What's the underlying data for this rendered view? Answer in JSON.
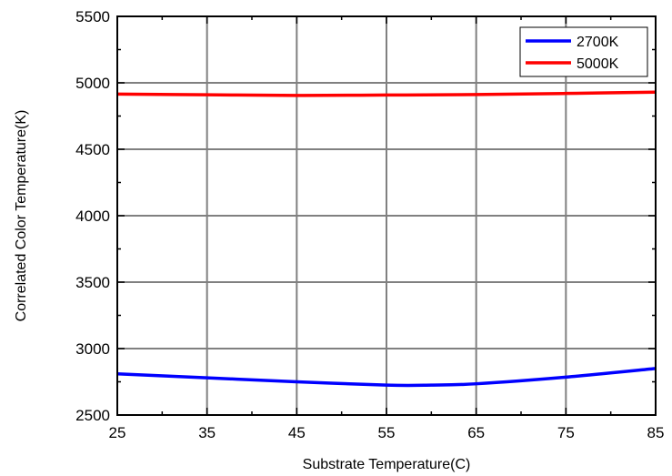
{
  "chart_data": {
    "type": "line",
    "title": "",
    "xlabel": "Substrate Temperature(C)",
    "ylabel": "Correlated Color Temperature(K)",
    "xlim": [
      25,
      85
    ],
    "ylim": [
      2500,
      5500
    ],
    "xticks": [
      25,
      35,
      45,
      55,
      65,
      75,
      85
    ],
    "yticks": [
      2500,
      3000,
      3500,
      4000,
      4500,
      5000,
      5500
    ],
    "grid": true,
    "legend_position": "top-right",
    "series": [
      {
        "name": "2700K",
        "color": "#0000ff",
        "x": [
          25,
          35,
          45,
          55,
          60,
          65,
          75,
          85
        ],
        "y": [
          2810,
          2780,
          2750,
          2725,
          2725,
          2735,
          2785,
          2850
        ]
      },
      {
        "name": "5000K",
        "color": "#ff0000",
        "x": [
          25,
          35,
          45,
          55,
          65,
          75,
          85
        ],
        "y": [
          4915,
          4910,
          4905,
          4908,
          4912,
          4920,
          4930
        ]
      }
    ]
  }
}
